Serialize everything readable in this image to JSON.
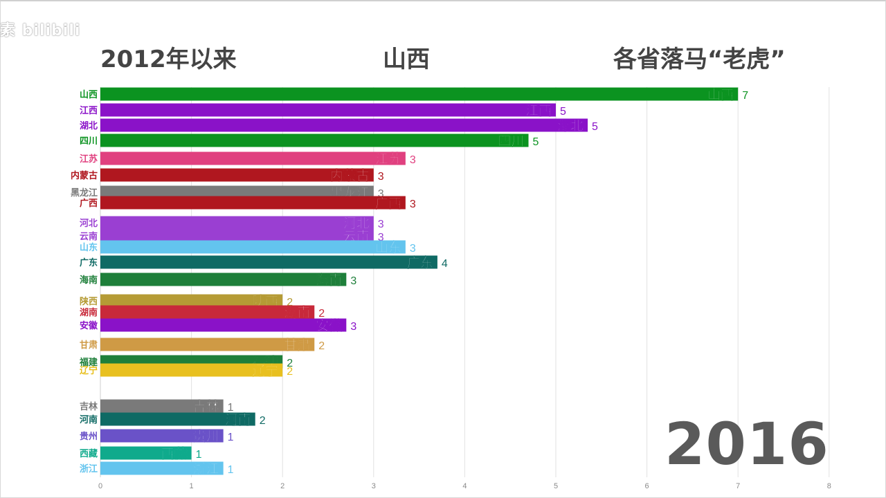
{
  "watermark": "素 bilibili",
  "title": {
    "left": "2012年以来",
    "middle": "山西",
    "right": "各省落马“老虎”"
  },
  "year_label": "2016",
  "chart_data": {
    "type": "bar",
    "orientation": "horizontal",
    "xlim": [
      0,
      8
    ],
    "x_ticks": [
      "0",
      "1",
      "2",
      "3",
      "4",
      "5",
      "6",
      "7",
      "8"
    ],
    "grid": true,
    "categories": [
      "山西",
      "江西",
      "湖北",
      "四川",
      "江苏",
      "内蒙古",
      "黑龙江",
      "广西",
      "河北",
      "云南",
      "山东",
      "广东",
      "海南",
      "陕西",
      "湖南",
      "安徽",
      "甘肃",
      "福建",
      "辽宁",
      "吉林",
      "河南",
      "贵州",
      "西藏",
      "浙江"
    ],
    "values": [
      7,
      5,
      5,
      5,
      3,
      3,
      3,
      3,
      3,
      3,
      3,
      4,
      3,
      2,
      2,
      3,
      2,
      2,
      2,
      1,
      2,
      1,
      1,
      1
    ],
    "bar_values": [
      7,
      5,
      5.35,
      4.7,
      3.35,
      3,
      3,
      3.35,
      3,
      3,
      3.35,
      3.7,
      2.7,
      2,
      2.35,
      2.7,
      2.35,
      2,
      2,
      1.35,
      1.7,
      1.35,
      1,
      1.35
    ],
    "colors": [
      "#0b9320",
      "#8a12c8",
      "#8a12c8",
      "#0b9320",
      "#e0407f",
      "#b0171f",
      "#7a7a7a",
      "#b0171f",
      "#9a3fd2",
      "#9a3fd2",
      "#63c4ee",
      "#0f6a64",
      "#1e7f3a",
      "#b59b35",
      "#c8293a",
      "#8a12c8",
      "#cf9a45",
      "#1e7f3a",
      "#e8c020",
      "#7a7a7a",
      "#0f6a64",
      "#6a52c8",
      "#0faa8c",
      "#63c4ee"
    ]
  }
}
